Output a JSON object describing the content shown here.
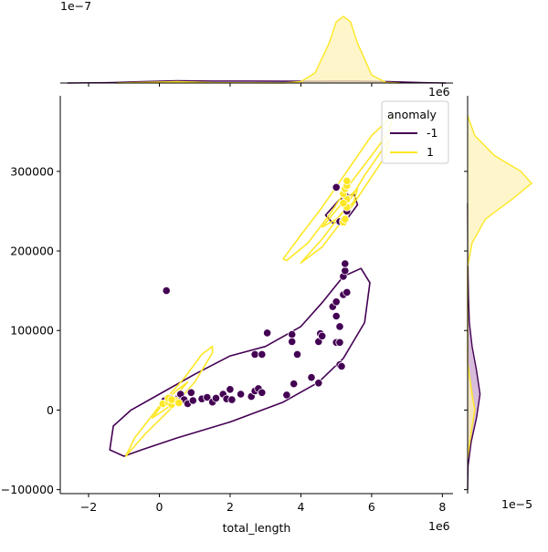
{
  "chart_data": {
    "type": "scatter",
    "title": "",
    "xlabel": "total_length",
    "ylabel": "",
    "x_offset_text": "1e6",
    "y_offset_text": "",
    "xlim": [
      -2.8,
      8.3
    ],
    "ylim": [
      -105000,
      395000
    ],
    "x_ticks": [
      -2,
      0,
      2,
      4,
      6,
      8
    ],
    "y_ticks": [
      -100000,
      0,
      100000,
      200000,
      300000
    ],
    "grid": false,
    "legend": {
      "title": "anomaly",
      "placement": "top-right",
      "entries": [
        {
          "label": "-1",
          "color": "#440154"
        },
        {
          "label": "1",
          "color": "#fde725"
        }
      ]
    },
    "series": [
      {
        "name": "-1",
        "color": "#440154",
        "points": [
          [
            0.2,
            150000
          ],
          [
            0.15,
            12000
          ],
          [
            0.3,
            15000
          ],
          [
            0.4,
            10000
          ],
          [
            0.5,
            14000
          ],
          [
            0.6,
            20000
          ],
          [
            0.7,
            13000
          ],
          [
            0.8,
            8000
          ],
          [
            0.9,
            22000
          ],
          [
            0.95,
            12000
          ],
          [
            1.2,
            14000
          ],
          [
            1.35,
            16000
          ],
          [
            1.5,
            10000
          ],
          [
            1.6,
            15000
          ],
          [
            1.8,
            20000
          ],
          [
            1.9,
            14000
          ],
          [
            2.0,
            26000
          ],
          [
            2.05,
            13000
          ],
          [
            2.3,
            20000
          ],
          [
            2.6,
            17000
          ],
          [
            2.7,
            24000
          ],
          [
            2.8,
            27000
          ],
          [
            2.9,
            22000
          ],
          [
            2.7,
            70000
          ],
          [
            2.9,
            70000
          ],
          [
            3.05,
            97000
          ],
          [
            3.6,
            19000
          ],
          [
            3.75,
            95000
          ],
          [
            3.75,
            86000
          ],
          [
            3.8,
            33000
          ],
          [
            3.9,
            70000
          ],
          [
            4.3,
            41000
          ],
          [
            4.5,
            86000
          ],
          [
            4.55,
            96000
          ],
          [
            4.5,
            34000
          ],
          [
            4.6,
            93000
          ],
          [
            4.9,
            130000
          ],
          [
            5.0,
            85000
          ],
          [
            5.0,
            136000
          ],
          [
            5.1,
            85000
          ],
          [
            5.1,
            105000
          ],
          [
            5.0,
            118000
          ],
          [
            5.2,
            145000
          ],
          [
            5.2,
            168000
          ],
          [
            5.25,
            175000
          ],
          [
            5.25,
            184000
          ],
          [
            5.3,
            148000
          ],
          [
            5.1,
            57000
          ],
          [
            5.15,
            55000
          ],
          [
            5.0,
            280000
          ],
          [
            5.1,
            237000
          ],
          [
            5.2,
            238000
          ],
          [
            5.25,
            270000
          ],
          [
            5.3,
            250000
          ]
        ]
      },
      {
        "name": "1",
        "color": "#fde725",
        "points": [
          [
            0.1,
            8000
          ],
          [
            0.25,
            10000
          ],
          [
            0.35,
            7000
          ],
          [
            0.45,
            12000
          ],
          [
            0.55,
            9000
          ],
          [
            0.25,
            15000
          ],
          [
            0.35,
            13000
          ],
          [
            5.2,
            236000
          ],
          [
            5.25,
            240000
          ],
          [
            5.3,
            255000
          ],
          [
            5.3,
            265000
          ],
          [
            5.2,
            272000
          ],
          [
            5.25,
            278000
          ],
          [
            5.3,
            282000
          ],
          [
            5.3,
            288000
          ],
          [
            5.2,
            260000
          ]
        ]
      }
    ],
    "kde_contours": [
      {
        "series": "-1",
        "color": "#440154",
        "path": [
          [
            -1.0,
            -58000
          ],
          [
            -1.4,
            -50000
          ],
          [
            -1.3,
            -20000
          ],
          [
            -0.8,
            0
          ],
          [
            0.0,
            20000
          ],
          [
            1.0,
            45000
          ],
          [
            2.0,
            68000
          ],
          [
            3.0,
            80000
          ],
          [
            4.0,
            105000
          ],
          [
            4.6,
            135000
          ],
          [
            5.2,
            168000
          ],
          [
            5.7,
            178000
          ],
          [
            5.95,
            160000
          ],
          [
            5.8,
            110000
          ],
          [
            5.2,
            65000
          ],
          [
            4.5,
            35000
          ],
          [
            3.5,
            10000
          ],
          [
            2.0,
            -15000
          ],
          [
            0.5,
            -35000
          ],
          [
            -0.5,
            -50000
          ],
          [
            -1.0,
            -58000
          ]
        ]
      },
      {
        "series": "-1",
        "color": "#440154",
        "path": [
          [
            4.7,
            245000
          ],
          [
            5.1,
            265000
          ],
          [
            5.5,
            272000
          ],
          [
            5.6,
            258000
          ],
          [
            5.3,
            240000
          ],
          [
            4.9,
            235000
          ],
          [
            4.7,
            245000
          ]
        ]
      },
      {
        "series": "1",
        "color": "#fde725",
        "path": [
          [
            -0.95,
            -58000
          ],
          [
            -0.4,
            -30000
          ],
          [
            0.4,
            5000
          ],
          [
            1.0,
            35000
          ],
          [
            1.5,
            72000
          ],
          [
            1.5,
            80000
          ],
          [
            1.2,
            70000
          ],
          [
            0.7,
            40000
          ],
          [
            0.0,
            5000
          ],
          [
            -0.7,
            -35000
          ],
          [
            -0.95,
            -58000
          ]
        ]
      },
      {
        "series": "1",
        "color": "#fde725",
        "path": [
          [
            -0.2,
            -10000
          ],
          [
            0.3,
            5000
          ],
          [
            0.6,
            25000
          ],
          [
            0.8,
            35000
          ],
          [
            0.5,
            25000
          ],
          [
            0.1,
            8000
          ],
          [
            -0.2,
            -10000
          ]
        ]
      },
      {
        "series": "1",
        "color": "#fde725",
        "path": [
          [
            3.5,
            190000
          ],
          [
            4.0,
            220000
          ],
          [
            4.6,
            255000
          ],
          [
            5.3,
            300000
          ],
          [
            6.0,
            345000
          ],
          [
            6.6,
            370000
          ],
          [
            6.5,
            350000
          ],
          [
            6.0,
            320000
          ],
          [
            5.4,
            285000
          ],
          [
            4.8,
            245000
          ],
          [
            4.2,
            210000
          ],
          [
            3.6,
            188000
          ],
          [
            3.5,
            190000
          ]
        ]
      },
      {
        "series": "1",
        "color": "#fde725",
        "path": [
          [
            4.0,
            185000
          ],
          [
            4.6,
            215000
          ],
          [
            5.2,
            250000
          ],
          [
            5.8,
            295000
          ],
          [
            6.5,
            340000
          ],
          [
            6.4,
            320000
          ],
          [
            5.8,
            280000
          ],
          [
            5.2,
            240000
          ],
          [
            4.6,
            205000
          ],
          [
            4.0,
            185000
          ]
        ]
      },
      {
        "series": "1",
        "color": "#fde725",
        "path": [
          [
            4.6,
            230000
          ],
          [
            5.2,
            262000
          ],
          [
            5.6,
            278000
          ],
          [
            5.5,
            262000
          ],
          [
            5.0,
            240000
          ],
          [
            4.6,
            230000
          ]
        ]
      }
    ],
    "top_marginal": {
      "offset_text": "1e−7",
      "series": [
        {
          "name": "-1",
          "color": "#440154",
          "fill": "#c9a6cf",
          "x": [
            -2.6,
            -1.5,
            -0.5,
            0.5,
            1.5,
            2.5,
            3.5,
            4.5,
            5.5,
            6.5,
            7.5,
            8.1
          ],
          "y": [
            0.0,
            0.005,
            0.02,
            0.035,
            0.03,
            0.03,
            0.028,
            0.028,
            0.03,
            0.02,
            0.006,
            0.0
          ]
        },
        {
          "name": "1",
          "color": "#fde725",
          "fill": "#fdf3b8",
          "x": [
            -1.2,
            0.0,
            0.5,
            1.5,
            3.5,
            4.0,
            4.4,
            4.8,
            5.0,
            5.2,
            5.4,
            5.6,
            6.0,
            6.4,
            6.8
          ],
          "y": [
            0.0,
            0.015,
            0.02,
            0.005,
            0.0,
            0.02,
            0.15,
            0.6,
            0.92,
            1.0,
            0.92,
            0.6,
            0.12,
            0.01,
            0.0
          ]
        }
      ]
    },
    "right_marginal": {
      "offset_text": "1e−5",
      "series": [
        {
          "name": "-1",
          "color": "#440154",
          "fill": "#c9a6cf",
          "y": [
            -100000,
            -70000,
            -40000,
            -10000,
            20000,
            50000,
            80000,
            110000,
            140000,
            170000,
            200000,
            260000
          ],
          "x": [
            0.0,
            0.005,
            0.04,
            0.1,
            0.14,
            0.1,
            0.05,
            0.02,
            0.01,
            0.005,
            0.002,
            0.0
          ]
        },
        {
          "name": "1",
          "color": "#fde725",
          "fill": "#fdf3b8",
          "y": [
            -60000,
            -20000,
            0,
            20000,
            60000,
            180000,
            210000,
            240000,
            265000,
            285000,
            300000,
            320000,
            345000,
            370000
          ],
          "x": [
            0.0,
            0.05,
            0.08,
            0.05,
            0.0,
            0.0,
            0.05,
            0.2,
            0.5,
            0.72,
            0.6,
            0.3,
            0.08,
            0.0
          ]
        }
      ]
    }
  }
}
